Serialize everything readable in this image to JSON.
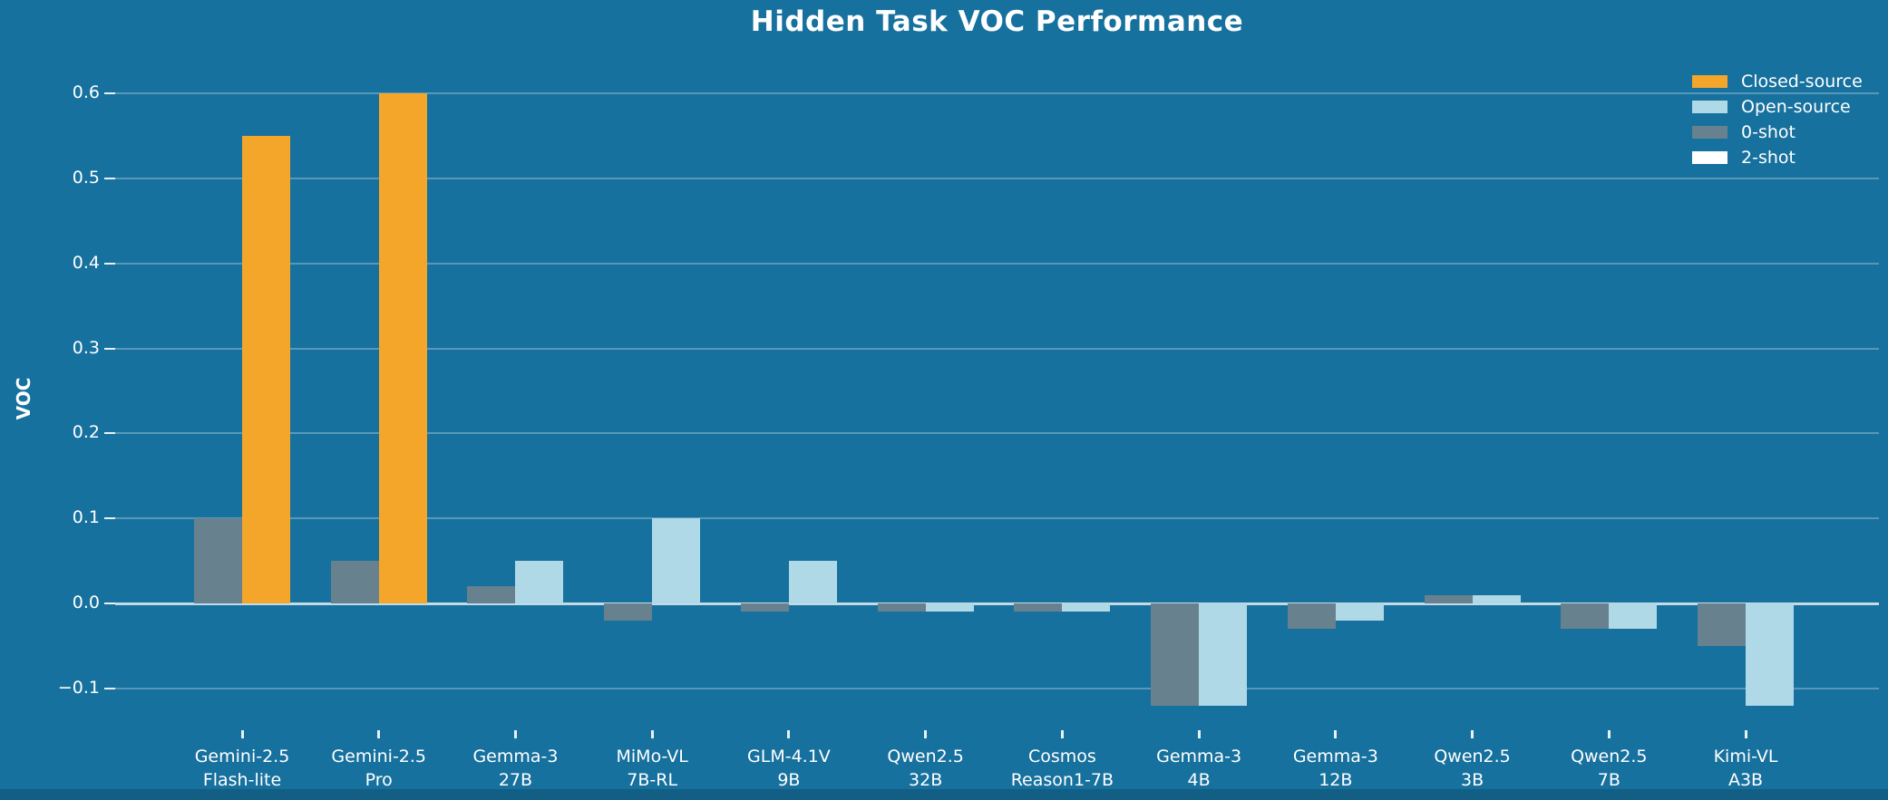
{
  "title": "Hidden Task VOC Performance",
  "colors": {
    "background": "#17719E",
    "closed_source": "#F4A62A",
    "open_source": "#AFD9E6",
    "zero_shot": "#67818E",
    "two_shot": "#FFFFFF",
    "gridline": "rgba(255,255,255,0.28)",
    "zero_line": "rgba(255,255,255,0.75)",
    "text": "#FFFFFF"
  },
  "legend": {
    "items": [
      {
        "label": "Closed-source",
        "color_key": "closed_source"
      },
      {
        "label": "Open-source",
        "color_key": "open_source"
      },
      {
        "label": "0-shot",
        "color_key": "zero_shot"
      },
      {
        "label": "2-shot",
        "color_key": "two_shot"
      }
    ]
  },
  "chart_data": {
    "type": "bar",
    "title": "Hidden Task VOC Performance",
    "xlabel": "",
    "ylabel": "VOC",
    "ylim": [
      -0.15,
      0.65
    ],
    "grid": true,
    "legend_position": "upper right",
    "y_ticks": [
      {
        "label": "0.6",
        "value": 0.6
      },
      {
        "label": "0.5",
        "value": 0.5
      },
      {
        "label": "0.4",
        "value": 0.4
      },
      {
        "label": "0.3",
        "value": 0.3
      },
      {
        "label": "0.2",
        "value": 0.2
      },
      {
        "label": "0.1",
        "value": 0.1
      },
      {
        "label": "0.0",
        "value": 0.0
      },
      {
        "label": "−0.1",
        "value": -0.1
      }
    ],
    "categories": [
      "Gemini-2.5\nFlash-lite",
      "Gemini-2.5\nPro",
      "Gemma-3\n27B",
      "MiMo-VL\n7B-RL",
      "GLM-4.1V\n9B",
      "Qwen2.5\n32B",
      "Cosmos\nReason1-7B",
      "Gemma-3\n4B",
      "Gemma-3\n12B",
      "Qwen2.5\n3B",
      "Qwen2.5\n7B",
      "Kimi-VL\nA3B"
    ],
    "source_type": [
      "closed",
      "closed",
      "open",
      "open",
      "open",
      "open",
      "open",
      "open",
      "open",
      "open",
      "open",
      "open"
    ],
    "series": [
      {
        "name": "0-shot",
        "values": [
          0.1,
          0.05,
          0.02,
          -0.02,
          -0.01,
          -0.01,
          -0.01,
          -0.12,
          -0.03,
          0.01,
          -0.03,
          -0.05
        ]
      },
      {
        "name": "2-shot",
        "values": [
          0.55,
          0.6,
          0.05,
          0.1,
          0.05,
          -0.01,
          -0.01,
          -0.12,
          -0.02,
          0.01,
          -0.03,
          -0.12
        ]
      }
    ]
  }
}
